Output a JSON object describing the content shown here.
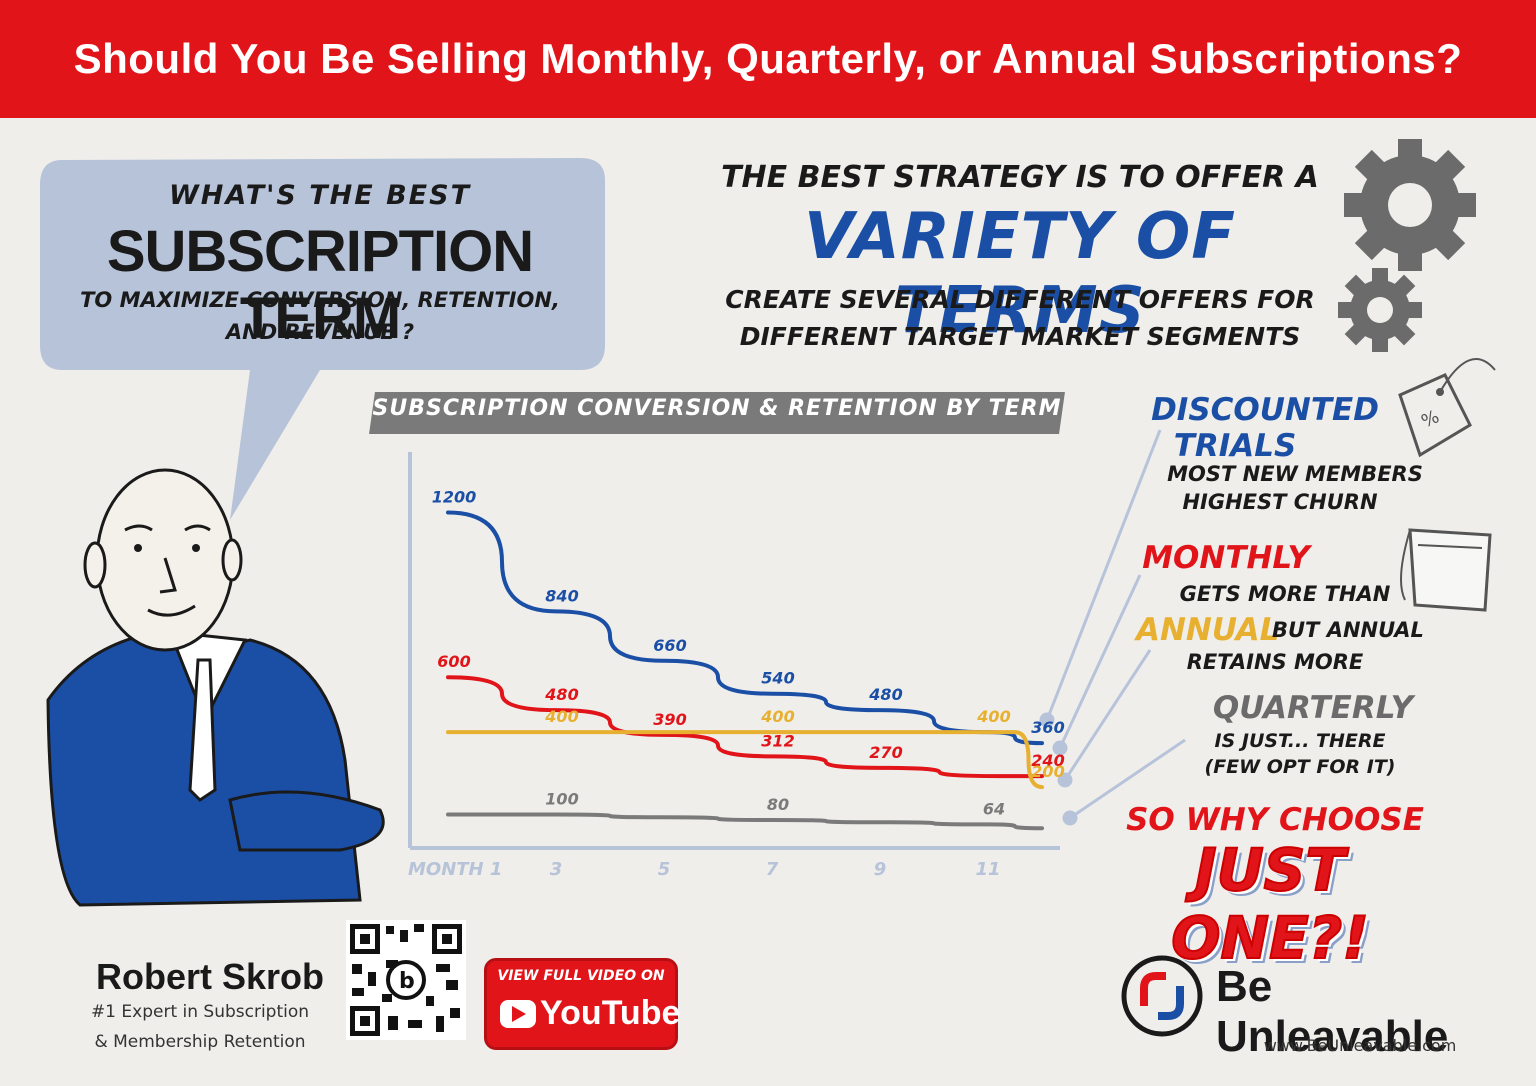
{
  "header": {
    "title": "Should You Be Selling Monthly, Quarterly, or Annual Subscriptions?"
  },
  "question": {
    "line1": "WHAT'S THE BEST",
    "line2": "SUBSCRIPTION TERM",
    "line3": "TO MAXIMIZE CONVERSION, RETENTION,",
    "line4": "AND REVENUE ?"
  },
  "strategy": {
    "line1": "THE BEST STRATEGY IS TO OFFER A",
    "line2": "VARIETY OF TERMS",
    "line3": "CREATE SEVERAL DIFFERENT OFFERS FOR",
    "line4": "DIFFERENT TARGET MARKET SEGMENTS"
  },
  "notes": {
    "discounted_1": "DISCOUNTED",
    "discounted_2": "TRIALS",
    "discounted_3": "MOST NEW MEMBERS",
    "discounted_4": "HIGHEST CHURN",
    "monthly_1": "MONTHLY",
    "monthly_2": "GETS MORE THAN",
    "monthly_3": "ANNUAL",
    "monthly_4": "BUT ANNUAL",
    "monthly_5": "RETAINS MORE",
    "quarterly_1": "QUARTERLY",
    "quarterly_2": "IS JUST... THERE",
    "quarterly_3": "(FEW OPT FOR IT)",
    "cta_1": "SO WHY CHOOSE",
    "cta_2": "JUST ONE?!"
  },
  "chart_data": {
    "type": "line",
    "title": "SUBSCRIPTION CONVERSION & RETENTION BY TERM",
    "xlabel": "",
    "ylabel": "",
    "x_tick_labels": [
      "MONTH 1",
      "3",
      "5",
      "7",
      "9",
      "11"
    ],
    "x_ticks": [
      1,
      3,
      5,
      7,
      9,
      11
    ],
    "xlim": [
      1,
      12
    ],
    "ylim": [
      0,
      1300
    ],
    "grid": false,
    "series": [
      {
        "key": "discounted",
        "color": "#1b4fa6",
        "x": [
          1,
          3,
          5,
          7,
          9,
          11,
          12
        ],
        "values": [
          1200,
          840,
          660,
          540,
          480,
          400,
          360
        ],
        "labels": [
          {
            "x": 1,
            "y": 1200,
            "text": "1200"
          },
          {
            "x": 3,
            "y": 840,
            "text": "840"
          },
          {
            "x": 5,
            "y": 660,
            "text": "660"
          },
          {
            "x": 7,
            "y": 540,
            "text": "540"
          },
          {
            "x": 9,
            "y": 480,
            "text": "480"
          },
          {
            "x": 12,
            "y": 360,
            "text": "360"
          }
        ]
      },
      {
        "key": "monthly",
        "color": "#e11419",
        "x": [
          1,
          3,
          5,
          7,
          9,
          11.2,
          12
        ],
        "values": [
          600,
          480,
          390,
          312,
          270,
          240,
          240
        ],
        "labels": [
          {
            "x": 1,
            "y": 600,
            "text": "600"
          },
          {
            "x": 3,
            "y": 480,
            "text": "480"
          },
          {
            "x": 5,
            "y": 390,
            "text": "390"
          },
          {
            "x": 7,
            "y": 312,
            "text": "312"
          },
          {
            "x": 9,
            "y": 270,
            "text": "270"
          },
          {
            "x": 12,
            "y": 240,
            "text": "240"
          }
        ]
      },
      {
        "key": "annual",
        "color": "#e8b030",
        "x": [
          1,
          3,
          5,
          7,
          9,
          11,
          11.5,
          12
        ],
        "values": [
          400,
          400,
          400,
          400,
          400,
          400,
          400,
          200
        ],
        "labels": [
          {
            "x": 3,
            "y": 400,
            "text": "400"
          },
          {
            "x": 7,
            "y": 400,
            "text": "400"
          },
          {
            "x": 11,
            "y": 400,
            "text": "400"
          },
          {
            "x": 12,
            "y": 200,
            "text": "200"
          }
        ]
      },
      {
        "key": "quarterly",
        "color": "#7a7a7a",
        "x": [
          1,
          3,
          5,
          7,
          9,
          11,
          12
        ],
        "values": [
          100,
          100,
          90,
          80,
          72,
          64,
          50
        ],
        "labels": [
          {
            "x": 3,
            "y": 100,
            "text": "100"
          },
          {
            "x": 7,
            "y": 80,
            "text": "80"
          },
          {
            "x": 11,
            "y": 64,
            "text": "64"
          }
        ]
      }
    ]
  },
  "author": {
    "name": "Robert Skrob",
    "role_line1": "#1 Expert in Subscription",
    "role_line2": "& Membership Retention"
  },
  "youtube": {
    "label": "VIEW FULL VIDEO ON",
    "word": "YouTube"
  },
  "brand": {
    "name": "Be Unleavable",
    "url": "www.BeUnleavable.com"
  },
  "colors": {
    "banner": "#e11419",
    "blue": "#1b4fa6",
    "red": "#e11419",
    "yellow": "#e8b030",
    "gray": "#7a7a7a"
  },
  "icons": [
    "gear-icon",
    "price-tag-icon",
    "notepad-icon",
    "qr-code-icon",
    "youtube-play-icon",
    "brand-logo-icon",
    "person-illustration"
  ]
}
